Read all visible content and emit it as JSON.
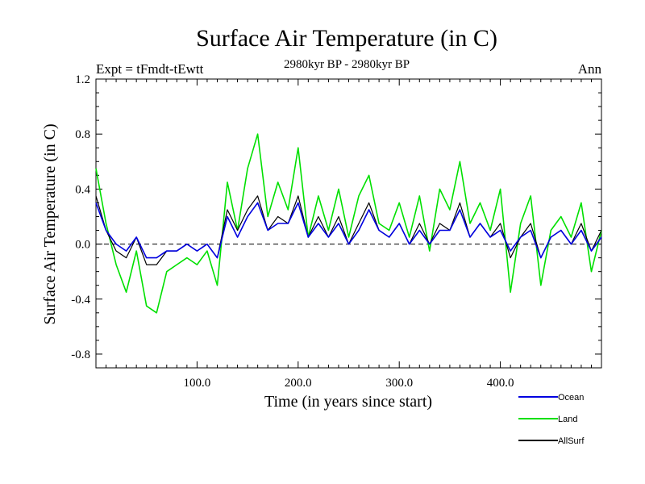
{
  "chart_data": {
    "type": "line",
    "title": "Surface Air Temperature (in C)",
    "subtitle": "2980kyr BP - 2980kyr BP",
    "expt_label": "Expt = tFmdt-tEwtt",
    "season_label": "Ann",
    "xlabel": "Time (in years since start)",
    "ylabel": "Surface Air Temperature (in C)",
    "xlim": [
      0,
      500
    ],
    "ylim": [
      -0.9,
      1.2
    ],
    "x_ticks": [
      100,
      200,
      300,
      400
    ],
    "x_tick_labels": [
      "100.0",
      "200.0",
      "300.0",
      "400.0"
    ],
    "y_ticks": [
      -0.8,
      -0.4,
      0.0,
      0.4,
      0.8,
      1.2
    ],
    "y_tick_labels": [
      "-0.8",
      "-0.4",
      "0.0",
      "0.4",
      "0.8",
      "1.2"
    ],
    "reference_line": 0.0,
    "x": [
      0,
      10,
      20,
      30,
      40,
      50,
      60,
      70,
      80,
      90,
      100,
      110,
      120,
      130,
      140,
      150,
      160,
      170,
      180,
      190,
      200,
      210,
      220,
      230,
      240,
      250,
      260,
      270,
      280,
      290,
      300,
      310,
      320,
      330,
      340,
      350,
      360,
      370,
      380,
      390,
      400,
      410,
      420,
      430,
      440,
      450,
      460,
      470,
      480,
      490,
      500
    ],
    "series": [
      {
        "name": "Land",
        "color": "#00e000",
        "values": [
          0.55,
          0.15,
          -0.15,
          -0.35,
          -0.05,
          -0.45,
          -0.5,
          -0.2,
          -0.15,
          -0.1,
          -0.15,
          -0.05,
          -0.3,
          0.45,
          0.1,
          0.55,
          0.8,
          0.2,
          0.45,
          0.25,
          0.7,
          0.05,
          0.35,
          0.1,
          0.4,
          0.05,
          0.35,
          0.5,
          0.15,
          0.1,
          0.3,
          0.05,
          0.35,
          -0.05,
          0.4,
          0.25,
          0.6,
          0.15,
          0.3,
          0.1,
          0.4,
          -0.35,
          0.15,
          0.35,
          -0.3,
          0.1,
          0.2,
          0.05,
          0.3,
          -0.2,
          0.1
        ]
      },
      {
        "name": "AllSurf",
        "color": "#000000",
        "values": [
          0.35,
          0.1,
          -0.05,
          -0.1,
          0.05,
          -0.15,
          -0.15,
          -0.05,
          -0.05,
          0.0,
          -0.05,
          0.0,
          -0.1,
          0.25,
          0.1,
          0.25,
          0.35,
          0.1,
          0.2,
          0.15,
          0.35,
          0.05,
          0.2,
          0.05,
          0.2,
          0.0,
          0.15,
          0.3,
          0.1,
          0.05,
          0.15,
          0.0,
          0.15,
          0.0,
          0.15,
          0.1,
          0.3,
          0.05,
          0.15,
          0.05,
          0.15,
          -0.1,
          0.05,
          0.15,
          -0.1,
          0.05,
          0.1,
          0.0,
          0.15,
          -0.05,
          0.1
        ]
      },
      {
        "name": "Ocean",
        "color": "#0000e0",
        "values": [
          0.3,
          0.1,
          0.0,
          -0.05,
          0.05,
          -0.1,
          -0.1,
          -0.05,
          -0.05,
          0.0,
          -0.05,
          0.0,
          -0.1,
          0.2,
          0.05,
          0.2,
          0.3,
          0.1,
          0.15,
          0.15,
          0.3,
          0.05,
          0.15,
          0.05,
          0.15,
          0.0,
          0.1,
          0.25,
          0.1,
          0.05,
          0.15,
          0.0,
          0.1,
          0.0,
          0.1,
          0.1,
          0.25,
          0.05,
          0.15,
          0.05,
          0.1,
          -0.05,
          0.05,
          0.1,
          -0.1,
          0.05,
          0.1,
          0.0,
          0.1,
          -0.05,
          0.05
        ]
      }
    ],
    "legend": [
      {
        "name": "Ocean",
        "color": "#0000e0"
      },
      {
        "name": "Land",
        "color": "#00e000"
      },
      {
        "name": "AllSurf",
        "color": "#000000"
      }
    ],
    "legend_position": "bottom-right"
  }
}
